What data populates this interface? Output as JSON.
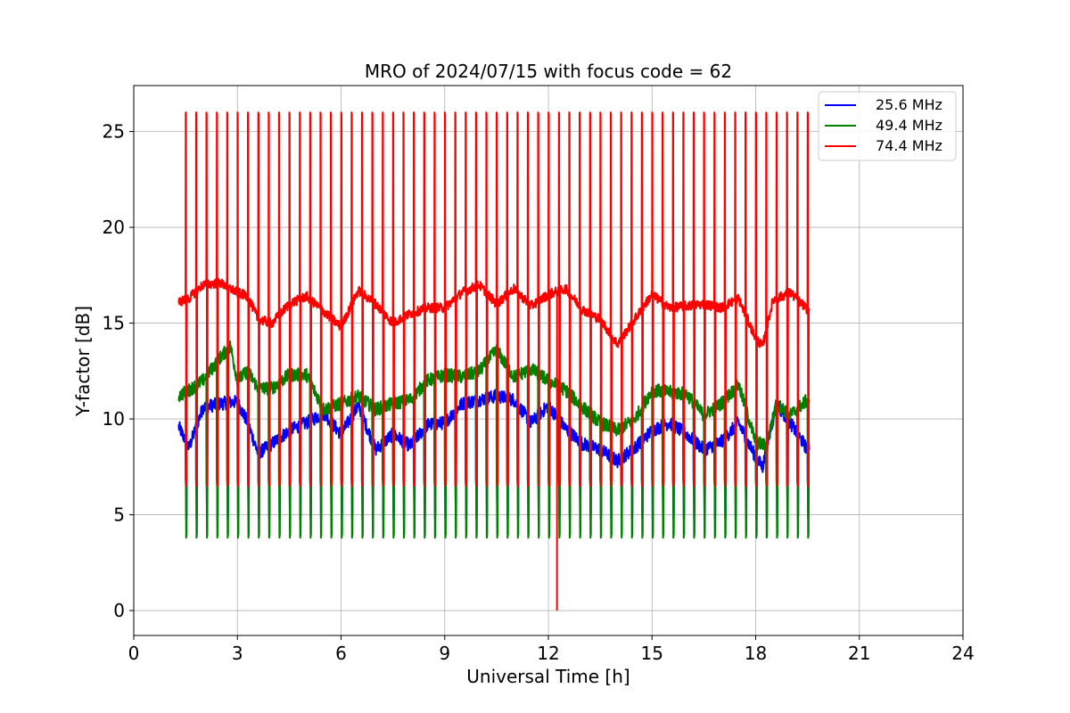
{
  "chart_data": {
    "type": "line",
    "title": "MRO of 2024/07/15 with focus code = 62",
    "xlabel": "Universal Time [h]",
    "ylabel": "Y-factor [dB]",
    "xlim": [
      0,
      24
    ],
    "ylim": [
      -1.3,
      27.4
    ],
    "xticks": [
      "0",
      "3",
      "6",
      "9",
      "12",
      "15",
      "18",
      "21",
      "24"
    ],
    "yticks": [
      "0",
      "5",
      "10",
      "15",
      "20",
      "25"
    ],
    "grid": true,
    "legend_position": "top-right",
    "pulse_start_h": 1.5,
    "pulse_interval_h": 0.3,
    "pulse_count": 61,
    "data_end_h": 19.55,
    "series": [
      {
        "name": "25.6 MHz",
        "color": "#0000ff",
        "pulse_low": 4.8,
        "pulse_high": 6.8,
        "baseline": [
          [
            1.3,
            9.6
          ],
          [
            1.6,
            8.5
          ],
          [
            2.0,
            10.6
          ],
          [
            2.5,
            10.8
          ],
          [
            3.0,
            10.9
          ],
          [
            3.3,
            9.8
          ],
          [
            3.6,
            8.2
          ],
          [
            4.0,
            8.7
          ],
          [
            4.5,
            9.4
          ],
          [
            5.0,
            9.8
          ],
          [
            5.5,
            10.3
          ],
          [
            6.0,
            9.2
          ],
          [
            6.5,
            10.7
          ],
          [
            7.0,
            8.4
          ],
          [
            7.5,
            9.2
          ],
          [
            8.0,
            8.6
          ],
          [
            8.5,
            9.7
          ],
          [
            9.0,
            9.8
          ],
          [
            9.5,
            10.8
          ],
          [
            10.0,
            11.0
          ],
          [
            10.5,
            11.2
          ],
          [
            11.0,
            11.0
          ],
          [
            11.5,
            9.8
          ],
          [
            12.0,
            10.7
          ],
          [
            12.5,
            9.5
          ],
          [
            13.0,
            8.7
          ],
          [
            13.5,
            8.4
          ],
          [
            14.0,
            7.8
          ],
          [
            14.5,
            8.5
          ],
          [
            15.0,
            9.4
          ],
          [
            15.5,
            9.8
          ],
          [
            16.0,
            9.2
          ],
          [
            16.5,
            8.4
          ],
          [
            17.0,
            8.8
          ],
          [
            17.5,
            9.8
          ],
          [
            18.0,
            8.0
          ],
          [
            18.2,
            7.5
          ],
          [
            18.6,
            10.8
          ],
          [
            19.0,
            9.8
          ],
          [
            19.5,
            8.4
          ]
        ]
      },
      {
        "name": "49.4 MHz",
        "color": "#008000",
        "pulse_low": 3.8,
        "pulse_high": 6.6,
        "baseline": [
          [
            1.3,
            11.2
          ],
          [
            1.6,
            11.5
          ],
          [
            2.0,
            12.0
          ],
          [
            2.5,
            13.2
          ],
          [
            2.8,
            13.8
          ],
          [
            3.0,
            12.0
          ],
          [
            3.3,
            12.5
          ],
          [
            3.6,
            11.6
          ],
          [
            4.0,
            11.6
          ],
          [
            4.5,
            12.3
          ],
          [
            5.0,
            12.3
          ],
          [
            5.5,
            10.5
          ],
          [
            6.0,
            10.8
          ],
          [
            6.5,
            11.2
          ],
          [
            7.0,
            10.5
          ],
          [
            7.5,
            10.8
          ],
          [
            8.0,
            11.0
          ],
          [
            8.5,
            12.0
          ],
          [
            9.0,
            12.3
          ],
          [
            9.5,
            12.2
          ],
          [
            10.0,
            12.5
          ],
          [
            10.5,
            13.6
          ],
          [
            11.0,
            12.2
          ],
          [
            11.5,
            12.6
          ],
          [
            12.0,
            12.0
          ],
          [
            12.5,
            11.5
          ],
          [
            13.0,
            10.6
          ],
          [
            13.5,
            9.8
          ],
          [
            14.0,
            9.4
          ],
          [
            14.5,
            10.0
          ],
          [
            15.0,
            11.5
          ],
          [
            15.5,
            11.4
          ],
          [
            16.0,
            11.3
          ],
          [
            16.5,
            10.2
          ],
          [
            17.0,
            10.8
          ],
          [
            17.5,
            11.8
          ],
          [
            18.0,
            8.8
          ],
          [
            18.3,
            8.6
          ],
          [
            18.6,
            10.8
          ],
          [
            19.0,
            10.2
          ],
          [
            19.5,
            11.0
          ]
        ]
      },
      {
        "name": "74.4 MHz",
        "color": "#ff0000",
        "pulse_low": 6.5,
        "pulse_high": 26.0,
        "dropout": {
          "x": 12.25,
          "y": 0
        },
        "baseline": [
          [
            1.3,
            16.1
          ],
          [
            1.6,
            16.3
          ],
          [
            2.0,
            17.0
          ],
          [
            2.5,
            17.1
          ],
          [
            3.0,
            16.6
          ],
          [
            3.3,
            16.4
          ],
          [
            3.6,
            15.2
          ],
          [
            4.0,
            15.0
          ],
          [
            4.5,
            16.0
          ],
          [
            5.0,
            16.4
          ],
          [
            5.5,
            15.6
          ],
          [
            6.0,
            14.8
          ],
          [
            6.5,
            16.7
          ],
          [
            7.0,
            16.0
          ],
          [
            7.5,
            15.0
          ],
          [
            8.0,
            15.5
          ],
          [
            8.5,
            15.8
          ],
          [
            9.0,
            15.8
          ],
          [
            9.5,
            16.6
          ],
          [
            10.0,
            17.0
          ],
          [
            10.5,
            16.0
          ],
          [
            11.0,
            16.8
          ],
          [
            11.5,
            15.9
          ],
          [
            12.0,
            16.5
          ],
          [
            12.5,
            16.8
          ],
          [
            13.0,
            15.7
          ],
          [
            13.5,
            15.2
          ],
          [
            14.0,
            13.9
          ],
          [
            14.5,
            15.2
          ],
          [
            15.0,
            16.5
          ],
          [
            15.5,
            15.8
          ],
          [
            16.0,
            15.9
          ],
          [
            16.5,
            16.0
          ],
          [
            17.0,
            15.8
          ],
          [
            17.5,
            16.3
          ],
          [
            18.0,
            14.2
          ],
          [
            18.2,
            13.8
          ],
          [
            18.5,
            16.2
          ],
          [
            19.0,
            16.6
          ],
          [
            19.5,
            15.7
          ]
        ]
      }
    ]
  }
}
